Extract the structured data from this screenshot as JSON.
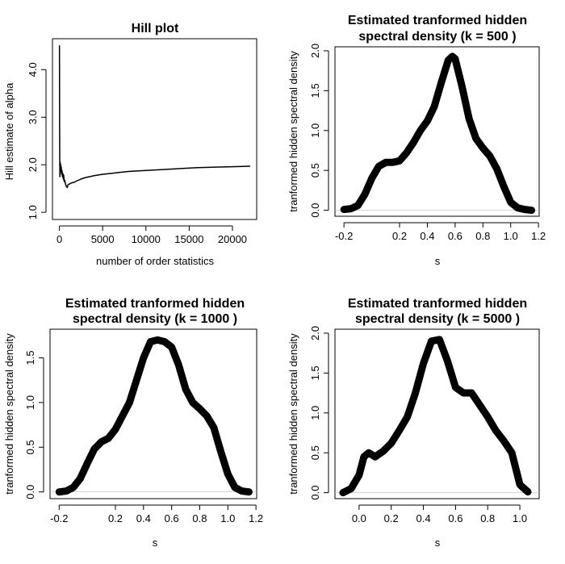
{
  "chart_data": [
    {
      "type": "line",
      "title": [
        "Hill plot"
      ],
      "xlabel": "number of order statistics",
      "ylabel": "Hill estimate of alpha",
      "xlim": [
        -800,
        22800
      ],
      "ylim": [
        0.85,
        4.65
      ],
      "xticks": [
        0,
        5000,
        10000,
        15000,
        20000
      ],
      "xtick_labels": [
        "0",
        "5000",
        "10000",
        "15000",
        "20000"
      ],
      "yticks": [
        1.0,
        2.0,
        3.0,
        4.0
      ],
      "ytick_labels": [
        "1.0",
        "2.0",
        "3.0",
        "4.0"
      ],
      "series": [
        {
          "name": "Hill estimate",
          "x": [
            10,
            25,
            40,
            60,
            80,
            100,
            130,
            160,
            190,
            220,
            260,
            300,
            350,
            400,
            450,
            500,
            550,
            600,
            700,
            800,
            900,
            1000,
            1200,
            1400,
            1700,
            2000,
            2500,
            3000,
            4000,
            5000,
            6000,
            7000,
            8000,
            10000,
            12000,
            14000,
            16000,
            18000,
            20000,
            22000
          ],
          "y": [
            4.5,
            2.9,
            2.2,
            1.75,
            1.95,
            2.05,
            1.85,
            2.0,
            1.9,
            1.95,
            1.8,
            1.88,
            1.75,
            1.82,
            1.7,
            1.78,
            1.65,
            1.68,
            1.6,
            1.55,
            1.52,
            1.58,
            1.6,
            1.62,
            1.63,
            1.66,
            1.7,
            1.73,
            1.77,
            1.8,
            1.82,
            1.84,
            1.86,
            1.88,
            1.9,
            1.92,
            1.94,
            1.95,
            1.96,
            1.97
          ]
        }
      ],
      "line_width": 1.5
    },
    {
      "type": "line",
      "title": [
        "Estimated tranformed hidden",
        "spectral density (k =  500 )"
      ],
      "xlabel": "s",
      "ylabel": "tranformed hidden spectral density",
      "xlim": [
        -0.265,
        1.205
      ],
      "ylim": [
        -0.075,
        2.05
      ],
      "xticks": [
        -0.2,
        0.2,
        0.4,
        0.6,
        0.8,
        1.0,
        1.2
      ],
      "xtick_labels": [
        "-0.2",
        "0.2",
        "0.4",
        "0.6",
        "0.8",
        "1.0",
        "1.2"
      ],
      "yticks": [
        0.0,
        0.5,
        1.0,
        1.5,
        2.0
      ],
      "ytick_labels": [
        "0.0",
        "0.5",
        "1.0",
        "1.5",
        "2.0"
      ],
      "series": [
        {
          "name": "density",
          "x": [
            -0.2,
            -0.15,
            -0.1,
            -0.05,
            0.0,
            0.05,
            0.1,
            0.15,
            0.2,
            0.25,
            0.3,
            0.35,
            0.4,
            0.45,
            0.5,
            0.55,
            0.58,
            0.6,
            0.65,
            0.7,
            0.75,
            0.8,
            0.85,
            0.9,
            0.95,
            1.0,
            1.05,
            1.1,
            1.15
          ],
          "y": [
            0.01,
            0.02,
            0.06,
            0.2,
            0.4,
            0.55,
            0.6,
            0.6,
            0.62,
            0.72,
            0.85,
            1.0,
            1.12,
            1.3,
            1.6,
            1.88,
            1.93,
            1.9,
            1.55,
            1.15,
            0.9,
            0.78,
            0.68,
            0.52,
            0.3,
            0.1,
            0.03,
            0.01,
            0.0
          ]
        }
      ],
      "line_width": 9
    },
    {
      "type": "line",
      "title": [
        "Estimated tranformed hidden",
        "spectral density (k =  1000 )"
      ],
      "xlabel": "s",
      "ylabel": "tranformed hidden spectral density",
      "xlim": [
        -0.265,
        1.205
      ],
      "ylim": [
        -0.075,
        1.82
      ],
      "xticks": [
        -0.2,
        0.2,
        0.4,
        0.6,
        0.8,
        1.0,
        1.2
      ],
      "xtick_labels": [
        "-0.2",
        "0.2",
        "0.4",
        "0.6",
        "0.8",
        "1.0",
        "1.2"
      ],
      "yticks": [
        0.0,
        0.5,
        1.0,
        1.5
      ],
      "ytick_labels": [
        "0.0",
        "0.5",
        "1.0",
        "1.5"
      ],
      "series": [
        {
          "name": "density",
          "x": [
            -0.2,
            -0.15,
            -0.1,
            -0.05,
            0.0,
            0.05,
            0.1,
            0.15,
            0.2,
            0.25,
            0.3,
            0.35,
            0.4,
            0.45,
            0.5,
            0.55,
            0.6,
            0.65,
            0.7,
            0.75,
            0.8,
            0.85,
            0.9,
            0.95,
            1.0,
            1.05,
            1.1,
            1.15
          ],
          "y": [
            0.0,
            0.01,
            0.05,
            0.15,
            0.32,
            0.48,
            0.56,
            0.6,
            0.7,
            0.85,
            1.0,
            1.25,
            1.5,
            1.68,
            1.7,
            1.68,
            1.62,
            1.42,
            1.15,
            1.0,
            0.93,
            0.85,
            0.72,
            0.45,
            0.2,
            0.05,
            0.01,
            0.0
          ]
        }
      ],
      "line_width": 9
    },
    {
      "type": "line",
      "title": [
        "Estimated tranformed hidden",
        "spectral density (k =  5000 )"
      ],
      "xlabel": "s",
      "ylabel": "tranformed hidden spectral density",
      "xlim": [
        -0.15,
        1.12
      ],
      "ylim": [
        -0.075,
        2.05
      ],
      "xticks": [
        0.0,
        0.2,
        0.4,
        0.6,
        0.8,
        1.0
      ],
      "xtick_labels": [
        "0.0",
        "0.2",
        "0.4",
        "0.6",
        "0.8",
        "1.0"
      ],
      "yticks": [
        0.0,
        0.5,
        1.0,
        1.5,
        2.0
      ],
      "ytick_labels": [
        "0.0",
        "0.5",
        "1.0",
        "1.5",
        "2.0"
      ],
      "series": [
        {
          "name": "density",
          "x": [
            -0.1,
            -0.05,
            0.0,
            0.03,
            0.06,
            0.1,
            0.15,
            0.2,
            0.25,
            0.3,
            0.35,
            0.4,
            0.45,
            0.5,
            0.55,
            0.6,
            0.65,
            0.7,
            0.75,
            0.8,
            0.85,
            0.9,
            0.95,
            1.0,
            1.05
          ],
          "y": [
            0.0,
            0.05,
            0.22,
            0.45,
            0.5,
            0.45,
            0.52,
            0.62,
            0.78,
            0.95,
            1.25,
            1.62,
            1.9,
            1.92,
            1.65,
            1.32,
            1.25,
            1.25,
            1.1,
            0.95,
            0.78,
            0.65,
            0.5,
            0.1,
            0.01
          ]
        }
      ],
      "line_width": 9
    }
  ]
}
